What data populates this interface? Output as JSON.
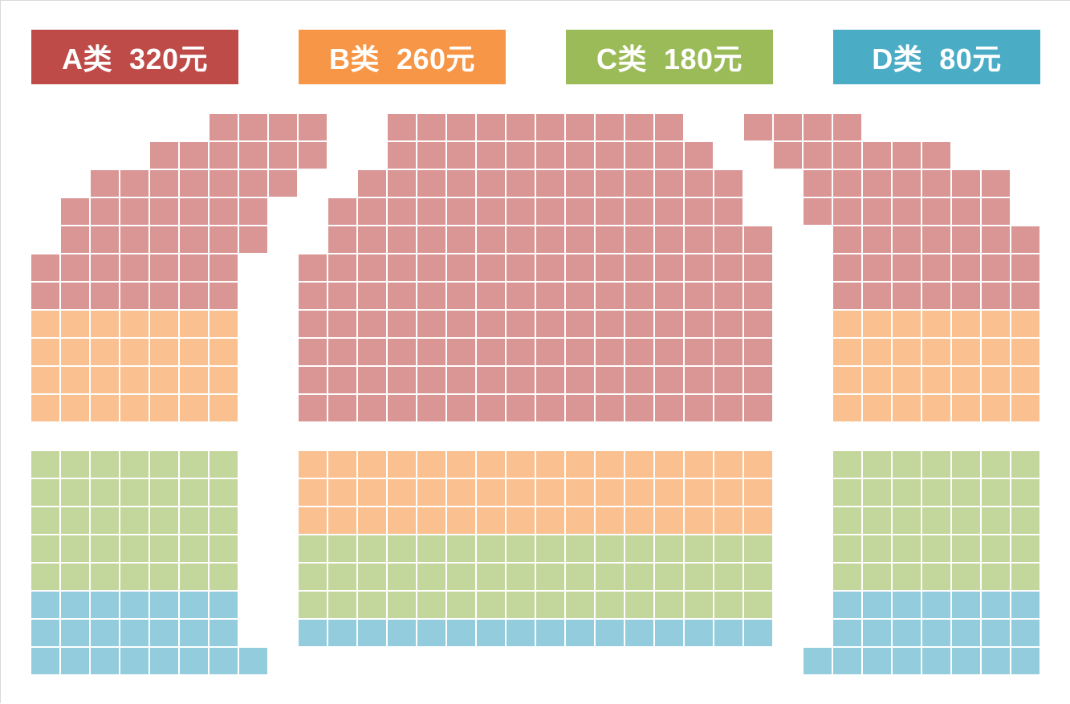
{
  "legend": [
    {
      "id": "A",
      "label": "A类  320元",
      "color": "#be4b48"
    },
    {
      "id": "B",
      "label": "B类  260元",
      "color": "#f79646"
    },
    {
      "id": "C",
      "label": "C类  180元",
      "color": "#9bbb59"
    },
    {
      "id": "D",
      "label": "D类  80元",
      "color": "#4bacc6"
    }
  ],
  "seat_colors": {
    "A": "#d99694",
    "B": "#fac090",
    "C": "#c3d69b",
    "D": "#93cddd"
  }
}
